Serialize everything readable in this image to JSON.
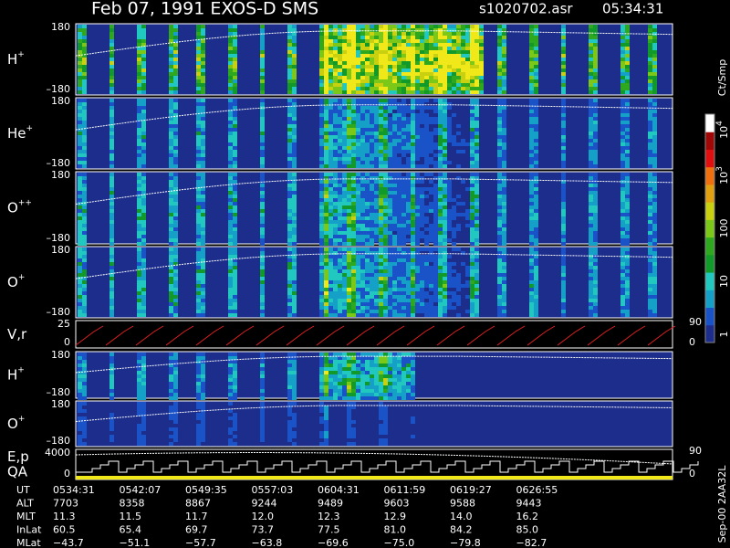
{
  "header": {
    "title": "Feb 07, 1991   EXOS-D SMS",
    "file": "s1020702.asr",
    "time": "05:34:31"
  },
  "panels": [
    {
      "label": "H",
      "sup": "+",
      "ticks": [
        "180",
        "–180"
      ]
    },
    {
      "label": "He",
      "sup": "+",
      "ticks": [
        "180",
        "–180"
      ]
    },
    {
      "label": "O",
      "sup": "++",
      "ticks": [
        "180",
        "–180"
      ]
    },
    {
      "label": "O",
      "sup": "+",
      "ticks": [
        "180",
        "–180"
      ]
    },
    {
      "label": "V,r",
      "sup": "",
      "ticks": [
        "25",
        "0"
      ],
      "right_ticks": [
        "90",
        "0"
      ]
    },
    {
      "label": "H",
      "sup": "+",
      "ticks": [
        "180",
        "–180"
      ]
    },
    {
      "label": "O",
      "sup": "+",
      "ticks": [
        "180",
        "–180"
      ]
    },
    {
      "label": "E,p",
      "label2": "QA",
      "sup": "",
      "ticks": [
        "4000",
        "0"
      ],
      "right_ticks": [
        "90",
        "0"
      ]
    }
  ],
  "colorbar": {
    "unit": "Ct/Smp",
    "ticks": [
      {
        "base": "10",
        "sup": "4"
      },
      {
        "base": "10",
        "sup": "3"
      },
      {
        "base": "100",
        "sup": ""
      },
      {
        "base": "10",
        "sup": ""
      },
      {
        "base": "1",
        "sup": ""
      }
    ]
  },
  "footer": {
    "rows": [
      {
        "name": "UT",
        "cells": [
          "0534:31",
          "0542:07",
          "0549:35",
          "0557:03",
          "0604:31",
          "0611:59",
          "0619:27",
          "0626:55"
        ]
      },
      {
        "name": "ALT",
        "cells": [
          "7703",
          "8358",
          "8867",
          "9244",
          "9489",
          "9603",
          "9588",
          "9443"
        ]
      },
      {
        "name": "MLT",
        "cells": [
          "11.3",
          "11.5",
          "11.7",
          "12.0",
          "12.3",
          "12.9",
          "14.0",
          "16.2"
        ]
      },
      {
        "name": "InLat",
        "cells": [
          "60.5",
          "65.4",
          "69.7",
          "73.7",
          "77.5",
          "81.0",
          "84.2",
          "85.0"
        ]
      },
      {
        "name": "MLat",
        "cells": [
          "−43.7",
          "−51.1",
          "−57.7",
          "−63.8",
          "−69.6",
          "−75.0",
          "−79.8",
          "−82.7"
        ]
      }
    ],
    "stamp": "Sep-00  2AA32L"
  }
}
